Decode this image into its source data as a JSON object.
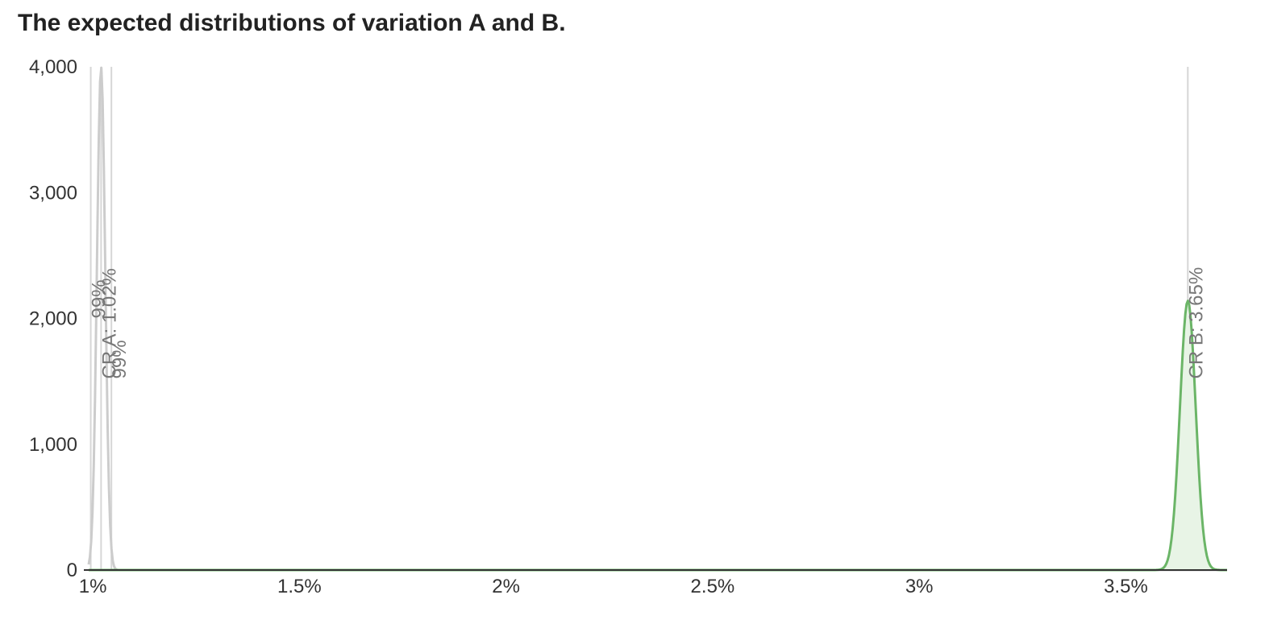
{
  "chart_data": {
    "type": "area",
    "title": "The expected distributions of variation A and B.",
    "xlabel": "",
    "ylabel": "",
    "xlim": [
      0.99,
      3.745
    ],
    "ylim": [
      0,
      4000
    ],
    "x_ticks": [
      {
        "value": 1.0,
        "label": "1%"
      },
      {
        "value": 1.5,
        "label": "1.5%"
      },
      {
        "value": 2.0,
        "label": "2%"
      },
      {
        "value": 2.5,
        "label": "2.5%"
      },
      {
        "value": 3.0,
        "label": "3%"
      },
      {
        "value": 3.5,
        "label": "3.5%"
      }
    ],
    "y_ticks": [
      {
        "value": 0,
        "label": "0"
      },
      {
        "value": 1000,
        "label": "1,000"
      },
      {
        "value": 2000,
        "label": "2,000"
      },
      {
        "value": 3000,
        "label": "3,000"
      },
      {
        "value": 4000,
        "label": "4,000"
      }
    ],
    "grid": false,
    "series": [
      {
        "mean": 1.02,
        "peak": 4000,
        "sd": 0.01,
        "color": "#cccccc",
        "fill": "#f4f4f4",
        "filled": false
      },
      {
        "mean": 3.65,
        "peak": 2140,
        "sd": 0.019,
        "color": "#6bb567",
        "fill": "#e8f4e6",
        "filled": true
      }
    ],
    "markers": [
      {
        "x": 0.995,
        "label": "99%",
        "color": "#d6d6d6",
        "label_y": 2000
      },
      {
        "x": 1.02,
        "label": "CR A: 1.02%",
        "color": "#d6d6d6",
        "label_y": 1520
      },
      {
        "x": 1.045,
        "label": "99%",
        "color": "#d6d6d6",
        "label_y": 1520
      },
      {
        "x": 3.65,
        "label": "CR B: 3.65%",
        "color": "#d6d6d6",
        "label_y": 1520
      }
    ],
    "colors": {
      "axis": "#333333",
      "tick_text": "#333333",
      "marker_text": "#777777"
    }
  }
}
